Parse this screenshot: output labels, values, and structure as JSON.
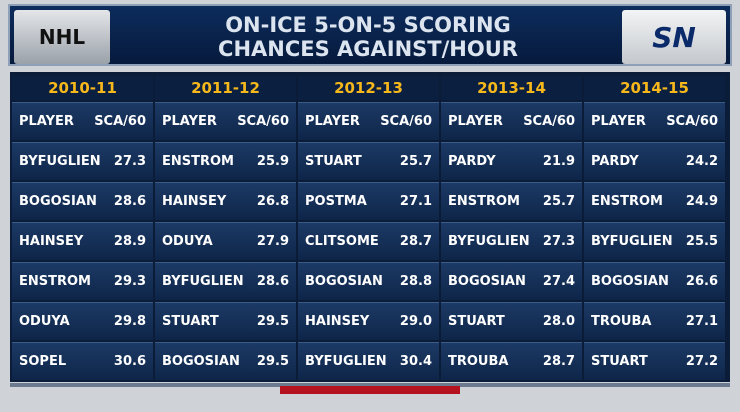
{
  "header": {
    "logo_left": "NHL",
    "title": [
      "ON-ICE 5-ON-5 SCORING",
      "CHANCES AGAINST/HOUR"
    ],
    "logo_right": "SN"
  },
  "table": {
    "columns": [
      {
        "season": "2010-11",
        "headers": [
          "PLAYER",
          "SCA/60"
        ],
        "rows": [
          [
            "BYFUGLIEN",
            "27.3"
          ],
          [
            "BOGOSIAN",
            "28.6"
          ],
          [
            "HAINSEY",
            "28.9"
          ],
          [
            "ENSTROM",
            "29.3"
          ],
          [
            "ODUYA",
            "29.8"
          ],
          [
            "SOPEL",
            "30.6"
          ]
        ]
      },
      {
        "season": "2011-12",
        "headers": [
          "PLAYER",
          "SCA/60"
        ],
        "rows": [
          [
            "ENSTROM",
            "25.9"
          ],
          [
            "HAINSEY",
            "26.8"
          ],
          [
            "ODUYA",
            "27.9"
          ],
          [
            "BYFUGLIEN",
            "28.6"
          ],
          [
            "STUART",
            "29.5"
          ],
          [
            "BOGOSIAN",
            "29.5"
          ]
        ]
      },
      {
        "season": "2012-13",
        "headers": [
          "PLAYER",
          "SCA/60"
        ],
        "rows": [
          [
            "STUART",
            "25.7"
          ],
          [
            "POSTMA",
            "27.1"
          ],
          [
            "CLITSOME",
            "28.7"
          ],
          [
            "BOGOSIAN",
            "28.8"
          ],
          [
            "HAINSEY",
            "29.0"
          ],
          [
            "BYFUGLIEN",
            "30.4"
          ]
        ]
      },
      {
        "season": "2013-14",
        "headers": [
          "PLAYER",
          "SCA/60"
        ],
        "rows": [
          [
            "PARDY",
            "21.9"
          ],
          [
            "ENSTROM",
            "25.7"
          ],
          [
            "BYFUGLIEN",
            "27.3"
          ],
          [
            "BOGOSIAN",
            "27.4"
          ],
          [
            "STUART",
            "28.0"
          ],
          [
            "TROUBA",
            "28.7"
          ]
        ]
      },
      {
        "season": "2014-15",
        "headers": [
          "PLAYER",
          "SCA/60"
        ],
        "rows": [
          [
            "PARDY",
            "24.2"
          ],
          [
            "ENSTROM",
            "24.9"
          ],
          [
            "BYFUGLIEN",
            "25.5"
          ],
          [
            "BOGOSIAN",
            "26.6"
          ],
          [
            "TROUBA",
            "27.1"
          ],
          [
            "STUART",
            "27.2"
          ]
        ]
      }
    ]
  }
}
